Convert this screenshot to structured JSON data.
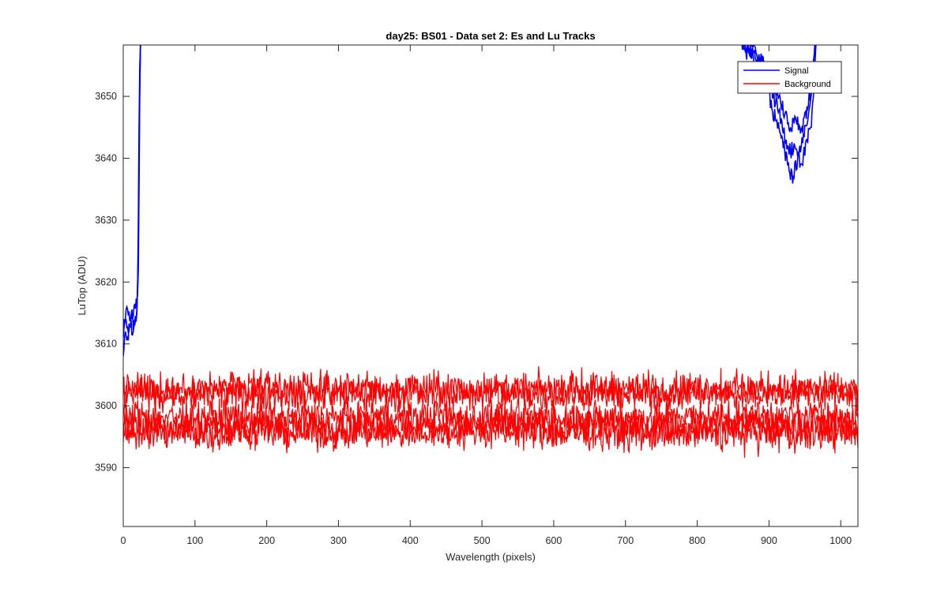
{
  "window": {
    "background": "#ffffff"
  },
  "chart_data": {
    "type": "line",
    "title": "day25: BS01 - Data set 2: Es and Lu Tracks",
    "xlabel": "Wavelength (pixels)",
    "ylabel": "LuTop (ADU)",
    "xlim": [
      0,
      1024
    ],
    "ylim": [
      3580.5,
      3658.3
    ],
    "x_ticks": [
      0,
      100,
      200,
      300,
      400,
      500,
      600,
      700,
      800,
      900,
      1000
    ],
    "y_ticks": [
      3590,
      3600,
      3610,
      3620,
      3630,
      3640,
      3650
    ],
    "grid": false,
    "legend_position": "top-right",
    "legend": [
      {
        "label": "Signal",
        "color": "#0000ff"
      },
      {
        "label": "Background",
        "color": "#ff0000"
      }
    ],
    "series": [
      {
        "name": "Signal",
        "color": "#0000ff",
        "segments": [
          {
            "x": [
              0,
              3,
              6,
              10,
              14,
              18,
              20,
              21,
              22,
              23,
              24,
              25
            ],
            "y": [
              3608,
              3612,
              3611,
              3613,
              3612,
              3614,
              3619,
              3630,
              3645,
              3655,
              3658,
              3659
            ]
          },
          {
            "x": [
              0,
              4,
              8,
              12,
              16,
              19,
              21,
              22,
              23,
              24,
              25,
              26
            ],
            "y": [
              3611,
              3614,
              3612,
              3614,
              3613,
              3615,
              3625,
              3640,
              3652,
              3659,
              3660,
              3661
            ]
          },
          {
            "x": [
              0,
              5,
              10,
              15,
              19,
              21,
              22,
              23,
              24,
              25
            ],
            "y": [
              3613,
              3616,
              3614,
              3616,
              3617,
              3622,
              3635,
              3650,
              3658,
              3660
            ]
          },
          {
            "x": [
              862,
              868,
              874,
              880,
              886,
              892,
              898,
              904,
              910,
              916,
              922,
              928,
              934,
              940,
              946,
              952,
              958,
              962,
              966
            ],
            "y": [
              3659,
              3657,
              3658,
              3655,
              3656,
              3653,
              3652,
              3648,
              3646,
              3644,
              3641,
              3638,
              3637,
              3640,
              3639,
              3643,
              3645,
              3650,
              3659
            ]
          },
          {
            "x": [
              862,
              870,
              878,
              886,
              894,
              900,
              906,
              912,
              918,
              924,
              930,
              936,
              942,
              948,
              954,
              960,
              966
            ],
            "y": [
              3659,
              3658,
              3657,
              3656,
              3655,
              3653,
              3650,
              3648,
              3646,
              3643,
              3641,
              3642,
              3641,
              3644,
              3646,
              3652,
              3660
            ]
          },
          {
            "x": [
              866,
              874,
              882,
              890,
              898,
              906,
              914,
              922,
              930,
              938,
              946,
              954,
              960,
              966
            ],
            "y": [
              3659,
              3658,
              3657,
              3656,
              3654,
              3652,
              3650,
              3647,
              3645,
              3646,
              3645,
              3648,
              3653,
              3660
            ]
          }
        ]
      },
      {
        "name": "Background",
        "color": "#ff0000",
        "bands": [
          {
            "center": 3602.8,
            "amplitude": 1.3
          },
          {
            "center": 3601.9,
            "amplitude": 1.4
          },
          {
            "center": 3598.2,
            "amplitude": 1.3
          },
          {
            "center": 3596.8,
            "amplitude": 1.5
          },
          {
            "center": 3595.6,
            "amplitude": 1.4
          }
        ]
      }
    ]
  }
}
